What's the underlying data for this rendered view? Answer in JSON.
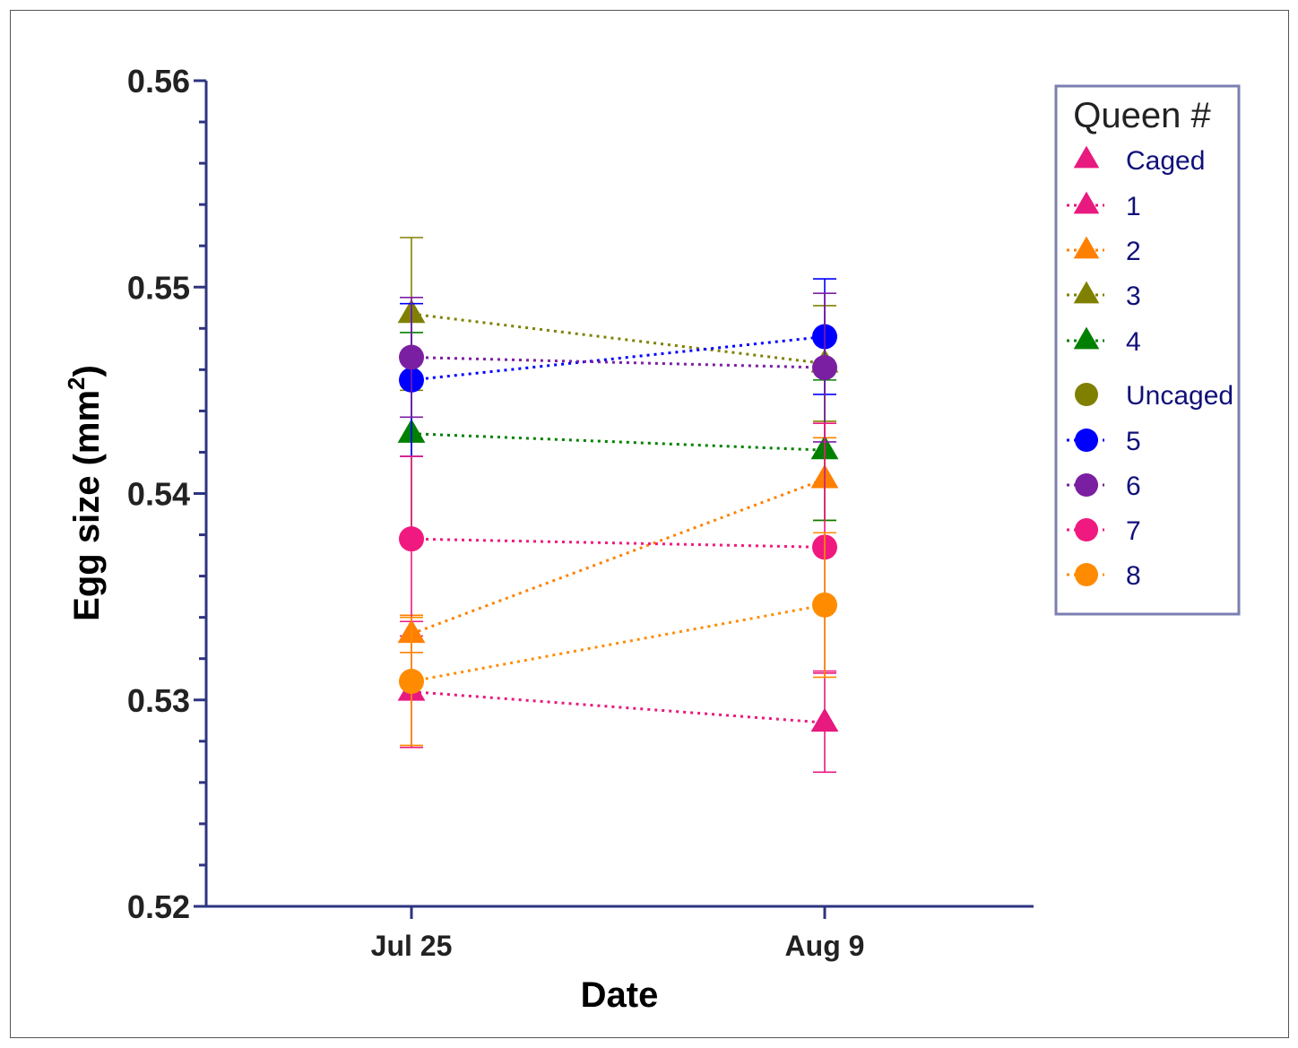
{
  "chart_data": {
    "type": "line",
    "xlabel": "Date",
    "ylabel": "Egg size (mm",
    "ylabel_sup": "2",
    "ylabel_close": ")",
    "categories": [
      "Jul 25",
      "Aug 9"
    ],
    "ylim": [
      0.52,
      0.56
    ],
    "yticks": [
      "0.52",
      "0.53",
      "0.54",
      "0.55",
      "0.56"
    ],
    "yticks_values": [
      0.52,
      0.53,
      0.54,
      0.55,
      0.56
    ],
    "minor_tick_step": 0.002,
    "axis_color": "#2e3480",
    "legend": {
      "title": "Queen #",
      "placement": "top-right",
      "groups": [
        {
          "label": "Caged",
          "marker": "triangle",
          "color": "#e8197f",
          "header": true
        },
        {
          "label": "1",
          "marker": "triangle",
          "color": "#e8197f",
          "series": 0
        },
        {
          "label": "2",
          "marker": "triangle",
          "color": "#ff8000",
          "series": 1
        },
        {
          "label": "3",
          "marker": "triangle",
          "color": "#808000",
          "series": 2
        },
        {
          "label": "4",
          "marker": "triangle",
          "color": "#008000",
          "series": 3
        },
        {
          "label": "Uncaged",
          "marker": "circle",
          "color": "#808000",
          "header": true
        },
        {
          "label": "5",
          "marker": "circle",
          "color": "#0000ff",
          "series": 4
        },
        {
          "label": "6",
          "marker": "circle",
          "color": "#7b1fa2",
          "series": 5
        },
        {
          "label": "7",
          "marker": "circle",
          "color": "#f0197f",
          "series": 6
        },
        {
          "label": "8",
          "marker": "circle",
          "color": "#ff8c00",
          "series": 7
        }
      ]
    },
    "series": [
      {
        "name": "1",
        "group": "Caged",
        "marker": "triangle",
        "color": "#e8197f",
        "values": [
          0.5304,
          0.5289
        ],
        "err": [
          0.0027,
          0.0024
        ]
      },
      {
        "name": "2",
        "group": "Caged",
        "marker": "triangle",
        "color": "#ff8000",
        "values": [
          0.5332,
          0.5407
        ],
        "err": [
          0.0009,
          0.002
        ]
      },
      {
        "name": "3",
        "group": "Caged",
        "marker": "triangle",
        "color": "#808000",
        "values": [
          0.5487,
          0.5463
        ],
        "err": [
          0.0037,
          0.0028
        ]
      },
      {
        "name": "4",
        "group": "Caged",
        "marker": "triangle",
        "color": "#008000",
        "values": [
          0.5429,
          0.5421
        ],
        "err": [
          0.0049,
          0.0034
        ]
      },
      {
        "name": "5",
        "group": "Uncaged",
        "marker": "circle",
        "color": "#0000ff",
        "values": [
          0.5455,
          0.5476
        ],
        "err": [
          0.0037,
          0.0028
        ]
      },
      {
        "name": "6",
        "group": "Uncaged",
        "marker": "circle",
        "color": "#7b1fa2",
        "values": [
          0.5466,
          0.5461
        ],
        "err": [
          0.0029,
          0.0036
        ]
      },
      {
        "name": "7",
        "group": "Uncaged",
        "marker": "circle",
        "color": "#f0197f",
        "values": [
          0.5378,
          0.5374
        ],
        "err": [
          0.004,
          0.006
        ]
      },
      {
        "name": "8",
        "group": "Uncaged",
        "marker": "circle",
        "color": "#ff8c00",
        "values": [
          0.5309,
          0.5346
        ],
        "err": [
          0.0031,
          0.0035
        ]
      }
    ],
    "grid": false
  }
}
